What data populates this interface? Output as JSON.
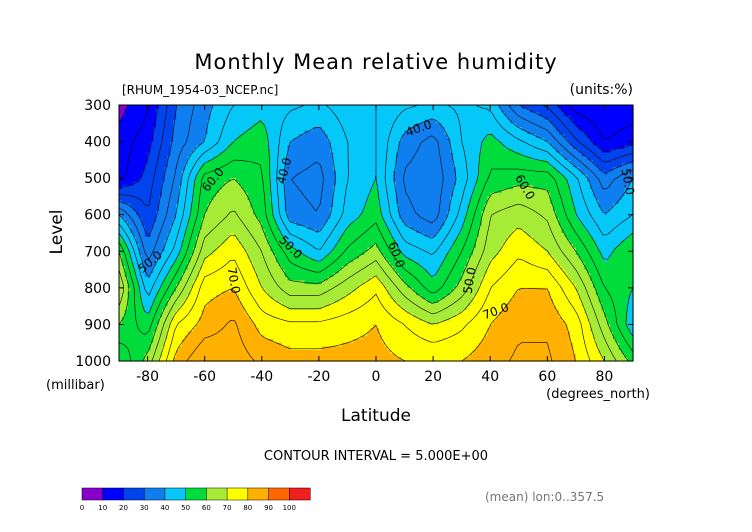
{
  "chart_data": {
    "type": "heatmap",
    "title": "Monthly Mean relative humidity",
    "file_label": "[RHUM_1954-03_NCEP.nc]",
    "units_label": "(units:%)",
    "xlabel": "Latitude",
    "x_units_label": "(degrees_north)",
    "ylabel": "Level",
    "y_units_label": "(millibar)",
    "xlim": [
      -90,
      90
    ],
    "ylim": [
      1000,
      300
    ],
    "x_ticks": [
      -80,
      -60,
      -40,
      -20,
      0,
      20,
      40,
      60,
      80
    ],
    "x_tick_labels": [
      "-80",
      "-60",
      "-40",
      "-20",
      "0",
      "20",
      "40",
      "60",
      "80"
    ],
    "y_ticks": [
      300,
      400,
      500,
      600,
      700,
      800,
      900,
      1000
    ],
    "y_tick_labels": [
      "300",
      "400",
      "500",
      "600",
      "700",
      "800",
      "900",
      "1000"
    ],
    "contour_interval_text": "CONTOUR INTERVAL = 5.000E+00",
    "footnote": "(mean) lon:0..357.5",
    "contour_labels": [
      {
        "text": "40.0",
        "x": -32,
        "y": 480,
        "angle": -75
      },
      {
        "text": "40.0",
        "x": 15,
        "y": 365,
        "angle": -20
      },
      {
        "text": "60.0",
        "x": -57,
        "y": 505,
        "angle": -50
      },
      {
        "text": "60.0",
        "x": 52,
        "y": 525,
        "angle": 60
      },
      {
        "text": "50.0",
        "x": 88,
        "y": 510,
        "angle": 80
      },
      {
        "text": "50.0",
        "x": -30,
        "y": 690,
        "angle": 45
      },
      {
        "text": "50.0",
        "x": -79,
        "y": 730,
        "angle": -40
      },
      {
        "text": "60.0",
        "x": 7,
        "y": 710,
        "angle": 70
      },
      {
        "text": "70.0",
        "x": -50,
        "y": 780,
        "angle": 80
      },
      {
        "text": "50.0",
        "x": 33,
        "y": 780,
        "angle": -80
      },
      {
        "text": "70.0",
        "x": 42,
        "y": 865,
        "angle": -20
      }
    ],
    "levels": [
      0,
      10,
      20,
      30,
      40,
      50,
      60,
      70,
      80,
      90,
      100
    ],
    "colorbar_labels": [
      "0",
      "10",
      "20",
      "30",
      "40",
      "50",
      "60",
      "70",
      "80",
      "90",
      "100"
    ],
    "colors": [
      "#8800cc",
      "#0000ff",
      "#0044ee",
      "#0f7ff0",
      "#06c8f8",
      "#00dc3c",
      "#a6ec36",
      "#ffff00",
      "#ffb000",
      "#ff6800",
      "#f01e1e"
    ],
    "grid_lat": [
      -90,
      -80,
      -70,
      -60,
      -50,
      -40,
      -30,
      -20,
      -10,
      0,
      10,
      20,
      30,
      40,
      50,
      60,
      70,
      80,
      90
    ],
    "grid_lev": [
      300,
      400,
      500,
      600,
      700,
      800,
      900,
      1000
    ],
    "values": [
      [
        8,
        14,
        30,
        38,
        45,
        48,
        46,
        44,
        48,
        50,
        46,
        44,
        46,
        44,
        30,
        24,
        12,
        10,
        12
      ],
      [
        12,
        18,
        32,
        40,
        50,
        53,
        40,
        37,
        45,
        50,
        38,
        33,
        45,
        52,
        46,
        40,
        26,
        15,
        18
      ],
      [
        13,
        22,
        36,
        57,
        60,
        56,
        35,
        33,
        45,
        50,
        34,
        31,
        42,
        56,
        58,
        58,
        46,
        32,
        40
      ],
      [
        40,
        25,
        40,
        60,
        66,
        58,
        37,
        35,
        47,
        53,
        37,
        32,
        47,
        65,
        68,
        64,
        50,
        40,
        45
      ],
      [
        60,
        32,
        47,
        68,
        74,
        65,
        52,
        45,
        56,
        62,
        48,
        44,
        55,
        68,
        74,
        70,
        60,
        48,
        55
      ],
      [
        70,
        42,
        60,
        78,
        80,
        70,
        62,
        62,
        68,
        74,
        62,
        52,
        62,
        75,
        80,
        80,
        70,
        55,
        50
      ],
      [
        60,
        52,
        75,
        82,
        86,
        78,
        76,
        76,
        78,
        80,
        75,
        70,
        74,
        80,
        84,
        84,
        78,
        62,
        46
      ],
      [
        50,
        62,
        82,
        90,
        88,
        84,
        82,
        82,
        82,
        82,
        80,
        80,
        80,
        83,
        86,
        86,
        80,
        70,
        58
      ]
    ]
  }
}
